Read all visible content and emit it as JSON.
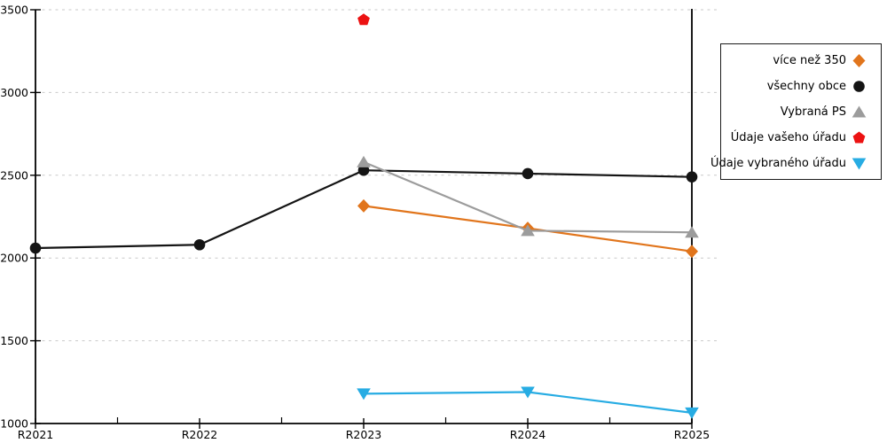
{
  "chart_data": {
    "type": "line",
    "title": "",
    "xlabel": "",
    "ylabel": "",
    "x_categories": [
      "R2021",
      "R2022",
      "R2023",
      "R2024",
      "R2025"
    ],
    "y_ticks": [
      1000,
      1500,
      2000,
      2500,
      3000,
      3500
    ],
    "y_tick_labels": [
      "1000",
      "1500",
      "2000",
      "2500",
      "3000",
      "3500"
    ],
    "ylim": [
      1000,
      3500
    ],
    "grid": "horizontal-dashed",
    "legend_position": "top-right",
    "colors": {
      "axis": "#000000",
      "gridline": "#c9c9c9",
      "legend_border": "#1a1a1a"
    },
    "series": [
      {
        "name": "více než 350",
        "color": "#E1751C",
        "marker": "diamond",
        "x": [
          "R2023",
          "R2024",
          "R2025"
        ],
        "values": [
          2315,
          2180,
          2040
        ]
      },
      {
        "name": "všechny obce",
        "color": "#141414",
        "marker": "circle",
        "x": [
          "R2021",
          "R2022",
          "R2023",
          "R2024",
          "R2025"
        ],
        "values": [
          2060,
          2080,
          2530,
          2510,
          2490
        ]
      },
      {
        "name": "Vybraná PS",
        "color": "#9C9C9C",
        "marker": "triangle-up",
        "x": [
          "R2023",
          "R2024",
          "R2025"
        ],
        "values": [
          2580,
          2165,
          2155
        ]
      },
      {
        "name": "Údaje vašeho úřadu",
        "color": "#EC1212",
        "marker": "pentagon",
        "x": [
          "R2023"
        ],
        "values": [
          3440
        ]
      },
      {
        "name": "Údaje vybraného úřadu",
        "color": "#27ACE3",
        "marker": "triangle-down",
        "x": [
          "R2023",
          "R2024",
          "R2025"
        ],
        "values": [
          1180,
          1190,
          1065
        ]
      }
    ]
  }
}
